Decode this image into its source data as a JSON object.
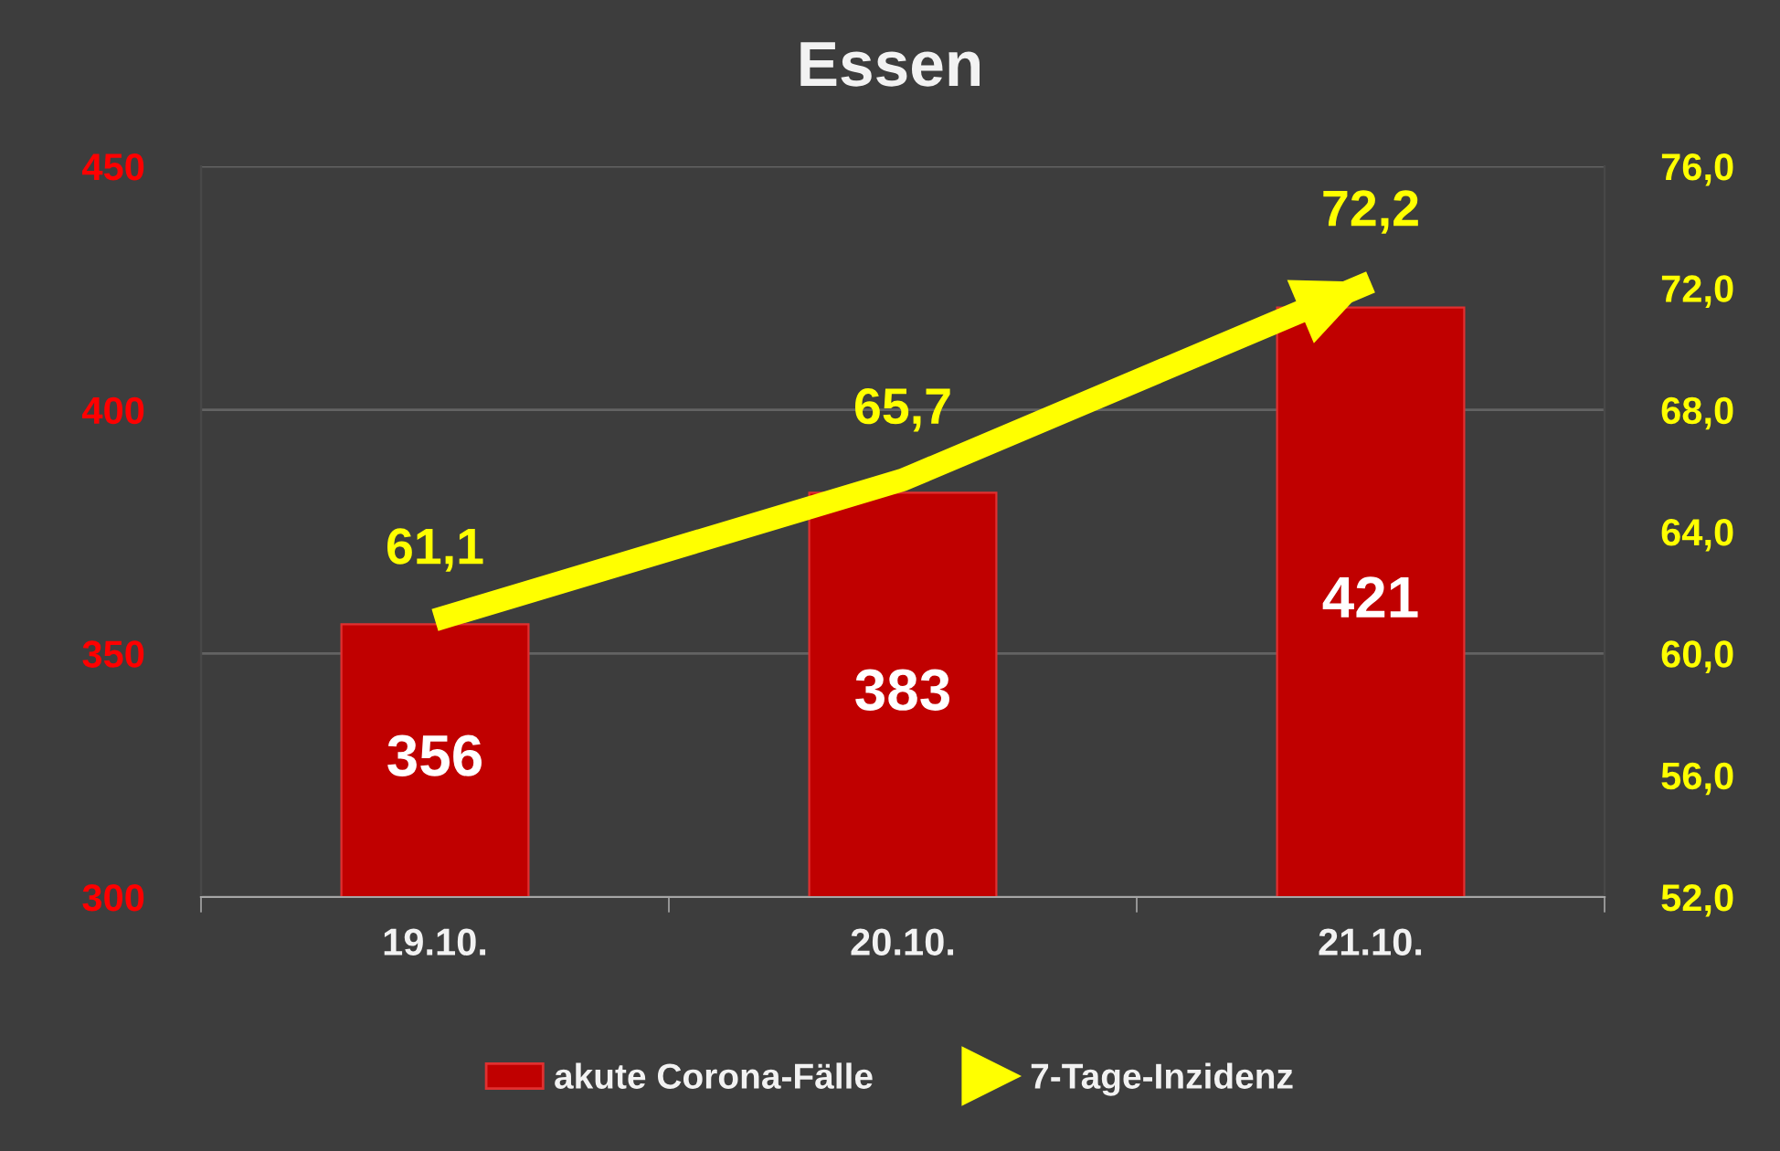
{
  "chart_data": {
    "type": "bar",
    "title": "Essen",
    "categories": [
      "19.10.",
      "20.10.",
      "21.10."
    ],
    "series": [
      {
        "name": "akute Corona-Fälle",
        "color": "#c00000",
        "values": [
          356,
          383,
          421
        ],
        "value_labels": [
          "356",
          "383",
          "421"
        ]
      },
      {
        "name": "7-Tage-Inzidenz",
        "type": "line",
        "axis": "y2",
        "color": "#ffff00",
        "values": [
          61.1,
          65.7,
          72.2
        ],
        "value_labels": [
          "61,1",
          "65,7",
          "72,2"
        ]
      }
    ],
    "ylim": [
      300,
      450
    ],
    "yticks": [
      300,
      350,
      400,
      450
    ],
    "y2lim": [
      52,
      76
    ],
    "y2ticks": [
      {
        "value": 52,
        "label": "52,0"
      },
      {
        "value": 56,
        "label": "56,0"
      },
      {
        "value": 60,
        "label": "60,0"
      },
      {
        "value": 64,
        "label": "64,0"
      },
      {
        "value": 68,
        "label": "68,0"
      },
      {
        "value": 72,
        "label": "72,0"
      },
      {
        "value": 76,
        "label": "76,0"
      }
    ],
    "grid": "y",
    "legend": "bottom"
  }
}
